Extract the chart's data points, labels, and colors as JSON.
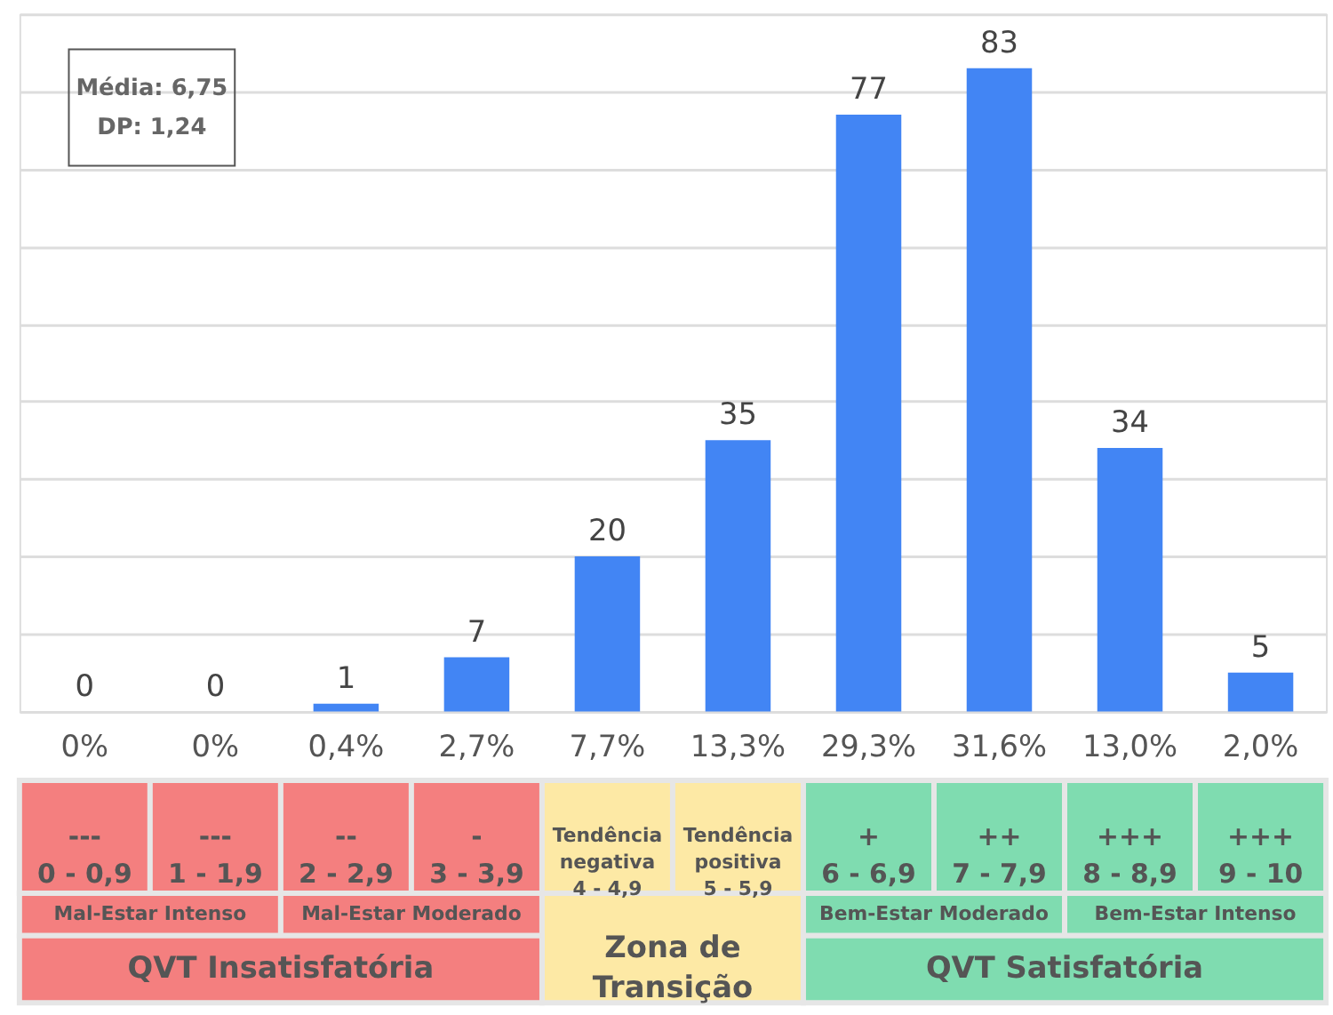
{
  "chart_data": [
    {
      "type": "bar",
      "categories": [
        "0%",
        "0%",
        "0,4%",
        "2,7%",
        "7,7%",
        "13,3%",
        "29,3%",
        "31,6%",
        "13,0%",
        "2,0%"
      ],
      "values": [
        0,
        0,
        1,
        7,
        20,
        35,
        77,
        83,
        34,
        5
      ],
      "color": "#4285f4",
      "data_labels": true,
      "ylim": [
        0,
        90
      ],
      "yticks": [
        {
          "value": 0,
          "label": null
        },
        {
          "value": 10,
          "label": null
        },
        {
          "value": 20,
          "label": null
        },
        {
          "value": 30,
          "label": null
        },
        {
          "value": 40,
          "label": null
        },
        {
          "value": 50,
          "label": null
        },
        {
          "value": 60,
          "label": null
        },
        {
          "value": 70,
          "label": null
        },
        {
          "value": 80,
          "label": null
        },
        {
          "value": 90,
          "label": null
        }
      ],
      "grid": "y",
      "annotations": [
        "Média: 6,75\nDP: 1,24"
      ]
    },
    {
      "type": "other",
      "colors": [
        "#f47f7f",
        "#fde9a5",
        "#7fdcb0"
      ],
      "annotations": [
        "---\n0 - 0,9",
        "---\n1 - 1,9",
        "--\n2 - 2,9",
        "-\n3 - 3,9",
        "Tendência\nnegativa\n4 - 4,9",
        "Tendência\npositiva\n5 - 5,9",
        "+\n6 - 6,9",
        "++\n7 - 7,9",
        "+++\n8 - 8,9",
        "+++\n9 - 10",
        "Mal-Estar Intenso",
        "Mal-Estar Moderado",
        "Zona de\nTransição",
        "Bem-Estar Moderado",
        "Bem-Estar Intenso",
        "QVT Insatisfatória",
        "QVT Satisfatória"
      ]
    }
  ]
}
